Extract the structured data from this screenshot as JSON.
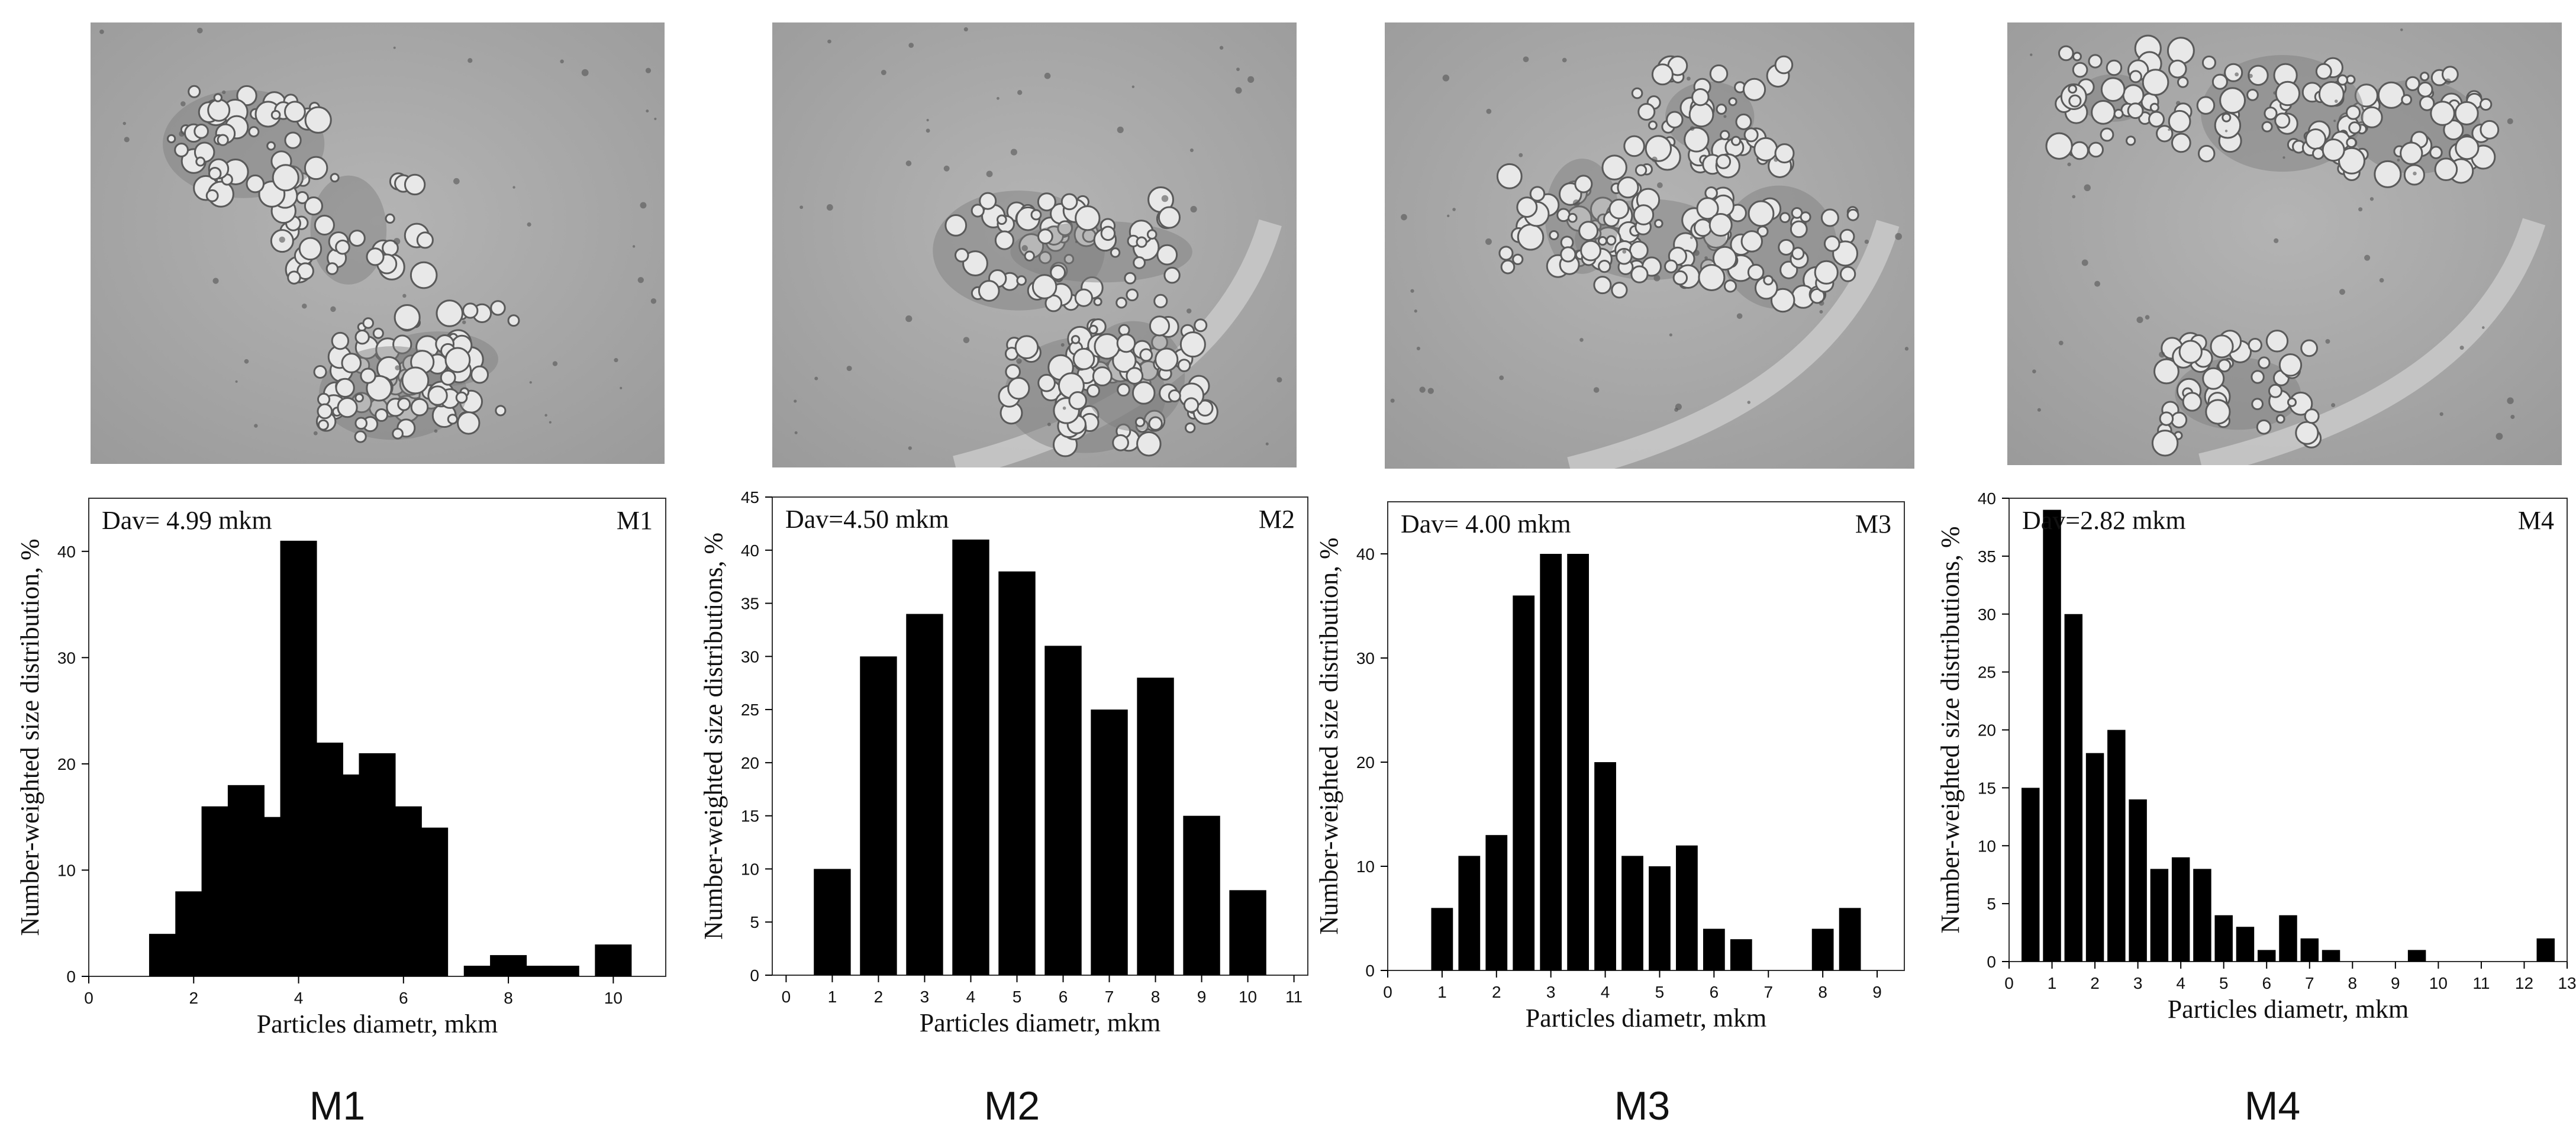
{
  "panels": [
    {
      "id": "M1",
      "caption": "M1",
      "corner_label": "M1",
      "dav": "Dav= 4.99 mkm"
    },
    {
      "id": "M2",
      "caption": "M2",
      "corner_label": "M2",
      "dav": "Dav=4.50 mkm"
    },
    {
      "id": "M3",
      "caption": "M3",
      "corner_label": "M3",
      "dav": "Dav= 4.00 mkm"
    },
    {
      "id": "M4",
      "caption": "M4",
      "corner_label": "M4",
      "dav": "Dav=2.82 mkm"
    }
  ],
  "colors": {
    "bar": "#000000",
    "axis": "#000000",
    "micro_bg": "#a9a9a9",
    "particle": "#e8e8e8",
    "particle_edge": "#5a5a5a",
    "cluster": "#7d7d7d"
  },
  "chart_data": [
    {
      "type": "bar",
      "title": "",
      "xlabel": "Particles diametr, mkm",
      "ylabel": "Number-weighted size distribution, %",
      "xlim": [
        0,
        11
      ],
      "ylim": [
        0,
        45
      ],
      "xticks": [
        0,
        2,
        4,
        6,
        8,
        10
      ],
      "yticks": [
        0,
        10,
        20,
        30,
        40
      ],
      "bar_width": 0.7,
      "x": [
        1.5,
        2.0,
        2.5,
        3.0,
        3.5,
        4.0,
        4.5,
        5.0,
        5.5,
        6.0,
        6.5,
        7.0,
        7.5,
        8.0,
        8.5,
        9.0,
        9.5,
        10.0
      ],
      "values": [
        4,
        8,
        16,
        18,
        15,
        41,
        22,
        19,
        21,
        16,
        14,
        0,
        1,
        2,
        1,
        1,
        0,
        3
      ],
      "dav": "Dav= 4.99 mkm",
      "label": "M1"
    },
    {
      "type": "bar",
      "title": "",
      "xlabel": "Particles diametr, mkm",
      "ylabel": "Number-weighted size distributions, %",
      "xlim": [
        -0.3,
        11.3
      ],
      "ylim": [
        0,
        45
      ],
      "xticks": [
        0,
        1,
        2,
        3,
        4,
        5,
        6,
        7,
        8,
        9,
        10,
        11
      ],
      "yticks": [
        0,
        5,
        10,
        15,
        20,
        25,
        30,
        35,
        40,
        45
      ],
      "bar_width": 0.8,
      "x": [
        1,
        2,
        3,
        4,
        5,
        6,
        7,
        8,
        9,
        10
      ],
      "values": [
        10,
        30,
        34,
        41,
        38,
        31,
        25,
        28,
        15,
        8
      ],
      "dav": "Dav=4.50 mkm",
      "label": "M2"
    },
    {
      "type": "bar",
      "title": "",
      "xlabel": "Particles diametr, mkm",
      "ylabel": "Number-weighted size distribution, %",
      "xlim": [
        0,
        9.5
      ],
      "ylim": [
        0,
        45
      ],
      "xticks": [
        0,
        1,
        2,
        3,
        4,
        5,
        6,
        7,
        8,
        9
      ],
      "yticks": [
        0,
        10,
        20,
        30,
        40
      ],
      "bar_width": 0.4,
      "x": [
        1.0,
        1.5,
        2.0,
        2.5,
        3.0,
        3.5,
        4.0,
        4.5,
        5.0,
        5.5,
        6.0,
        6.5,
        7.0,
        7.5,
        8.0,
        8.5
      ],
      "values": [
        6,
        11,
        13,
        36,
        40,
        40,
        20,
        11,
        10,
        12,
        4,
        3,
        0,
        0,
        4,
        6
      ],
      "dav": "Dav= 4.00 mkm",
      "label": "M3"
    },
    {
      "type": "bar",
      "title": "",
      "xlabel": "Particles diametr, mkm",
      "ylabel": "Number-weighted size distributions, %",
      "xlim": [
        0,
        13
      ],
      "ylim": [
        0,
        40
      ],
      "xticks": [
        0,
        1,
        2,
        3,
        4,
        5,
        6,
        7,
        8,
        9,
        10,
        11,
        12,
        13
      ],
      "yticks": [
        0,
        5,
        10,
        15,
        20,
        25,
        30,
        35,
        40
      ],
      "bar_width": 0.42,
      "x": [
        0.5,
        1.0,
        1.5,
        2.0,
        2.5,
        3.0,
        3.5,
        4.0,
        4.5,
        5.0,
        5.5,
        6.0,
        6.5,
        7.0,
        7.5,
        8.0,
        8.5,
        9.0,
        9.5,
        10.0,
        10.5,
        11.0,
        11.5,
        12.0,
        12.5
      ],
      "values": [
        15,
        39,
        30,
        18,
        20,
        14,
        8,
        9,
        8,
        4,
        3,
        1,
        4,
        2,
        1,
        0,
        0,
        0,
        1,
        0,
        0,
        0,
        0,
        0,
        2
      ],
      "dav": "Dav=2.82 mkm",
      "label": "M4"
    }
  ]
}
